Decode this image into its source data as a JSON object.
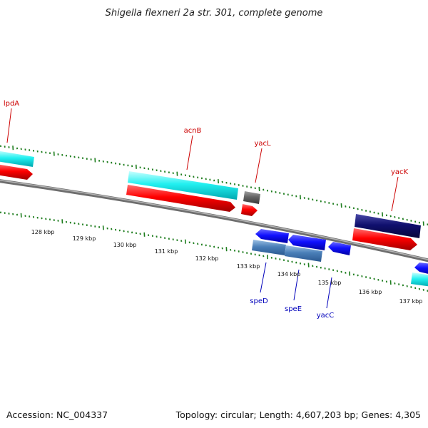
{
  "title": "Shigella flexneri 2a str. 301, complete genome",
  "footer": {
    "accession": "Accession: NC_004337",
    "summary": "Topology: circular; Length: 4,607,203 bp; Genes: 4,305"
  },
  "colors": {
    "backbone": "#888888",
    "ticks": "#1e7d1e",
    "forward_label": "#cc0000",
    "reverse_label": "#0000bb"
  },
  "kbp_labels": [
    "128 kbp",
    "129 kbp",
    "130 kbp",
    "131 kbp",
    "132 kbp",
    "133 kbp",
    "134 kbp",
    "135 kbp",
    "136 kbp",
    "137 kbp"
  ],
  "genes": [
    {
      "name": "lpdA",
      "strand": "forward"
    },
    {
      "name": "acnB",
      "strand": "forward"
    },
    {
      "name": "yacL",
      "strand": "forward"
    },
    {
      "name": "yacK",
      "strand": "forward"
    },
    {
      "name": "speD",
      "strand": "reverse"
    },
    {
      "name": "speE",
      "strand": "reverse"
    },
    {
      "name": "yacC",
      "strand": "reverse"
    }
  ]
}
